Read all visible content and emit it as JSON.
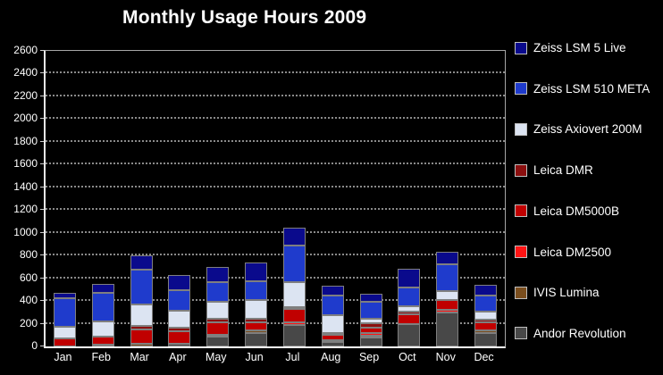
{
  "title": "Monthly Usage Hours 2009",
  "colors": {
    "background": "#000000",
    "text": "#ffffff",
    "gridline": "#8a8a8a",
    "axis_line": "#ffffff",
    "plot_border": "#a6a6a6",
    "segment_border": "#7f7f7f"
  },
  "chart_data": {
    "type": "bar",
    "stacked": true,
    "title": "Monthly Usage Hours 2009",
    "xlabel": "",
    "ylabel": "",
    "ylim": [
      0,
      2600
    ],
    "ytick_step": 200,
    "grid": "horizontal-dotted",
    "legend_position": "right",
    "stack_note": "legend order top-to-bottom equals stack order top-to-bottom",
    "categories": [
      "Jan",
      "Feb",
      "Mar",
      "Apr",
      "May",
      "Jun",
      "Jul",
      "Aug",
      "Sep",
      "Oct",
      "Nov",
      "Dec"
    ],
    "series": [
      {
        "name": "Zeiss LSM 5 Live",
        "color": "#0a0a8c",
        "values": [
          45,
          80,
          130,
          135,
          135,
          160,
          160,
          90,
          70,
          170,
          105,
          90
        ]
      },
      {
        "name": "Zeiss LSM 510 META",
        "color": "#1f3bcc",
        "values": [
          250,
          250,
          305,
          185,
          170,
          170,
          320,
          175,
          150,
          160,
          240,
          140
        ]
      },
      {
        "name": "Zeiss Axiovert 200M",
        "color": "#dce4f2",
        "values": [
          105,
          135,
          190,
          150,
          150,
          160,
          220,
          155,
          40,
          45,
          80,
          75
        ]
      },
      {
        "name": "Leica DMR",
        "color": "#8b0f0f",
        "values": [
          0,
          0,
          30,
          30,
          30,
          35,
          15,
          18,
          35,
          25,
          0,
          20
        ]
      },
      {
        "name": "Leica DM5000B",
        "color": "#c00000",
        "values": [
          70,
          70,
          125,
          112,
          110,
          65,
          115,
          42,
          50,
          90,
          80,
          70
        ]
      },
      {
        "name": "Leica DM2500",
        "color": "#ff1414",
        "values": [
          0,
          0,
          0,
          0,
          0,
          0,
          30,
          0,
          25,
          0,
          25,
          0
        ]
      },
      {
        "name": "IVIS Lumina",
        "color": "#7a4e1e",
        "values": [
          0,
          15,
          25,
          0,
          10,
          25,
          0,
          18,
          15,
          0,
          0,
          25
        ]
      },
      {
        "name": "Andor Revolution",
        "color": "#484848",
        "values": [
          0,
          0,
          0,
          20,
          90,
          120,
          185,
          40,
          78,
          195,
          300,
          120
        ]
      }
    ],
    "totals": [
      470,
      550,
      805,
      632,
      695,
      735,
      1045,
      538,
      463,
      685,
      830,
      540
    ]
  }
}
